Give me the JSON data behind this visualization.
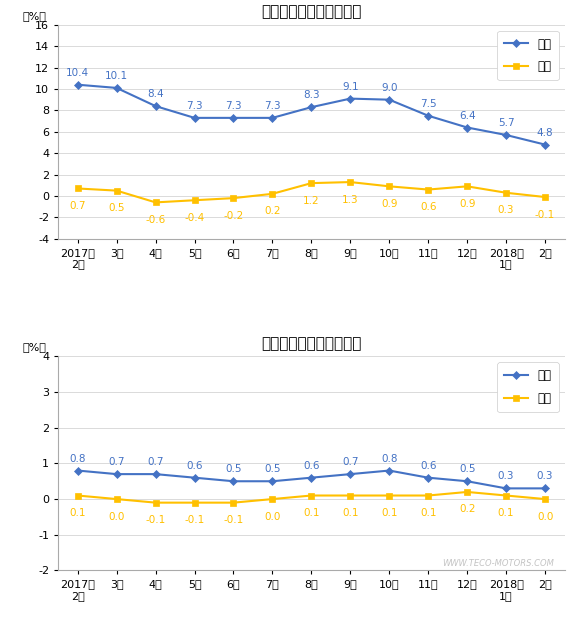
{
  "x_labels": [
    "2017年\n2月",
    "3月",
    "4月",
    "5月",
    "6月",
    "7月",
    "8月",
    "9月",
    "10月",
    "11月",
    "12月",
    "2018年\n1月",
    "2月"
  ],
  "chart1": {
    "title": "生产资料出厂价格涨跌幅",
    "tongbi": [
      10.4,
      10.1,
      8.4,
      7.3,
      7.3,
      7.3,
      8.3,
      9.1,
      9.0,
      7.5,
      6.4,
      5.7,
      4.8
    ],
    "huanbi": [
      0.7,
      0.5,
      -0.6,
      -0.4,
      -0.2,
      0.2,
      1.2,
      1.3,
      0.9,
      0.6,
      0.9,
      0.3,
      -0.1
    ],
    "ylim": [
      -4,
      16
    ],
    "yticks": [
      -4,
      -2,
      0,
      2,
      4,
      6,
      8,
      10,
      12,
      14,
      16
    ]
  },
  "chart2": {
    "title": "生活资料出厂价格涨跌幅",
    "tongbi": [
      0.8,
      0.7,
      0.7,
      0.6,
      0.5,
      0.5,
      0.6,
      0.7,
      0.8,
      0.6,
      0.5,
      0.3,
      0.3
    ],
    "huanbi": [
      0.1,
      0.0,
      -0.1,
      -0.1,
      -0.1,
      0.0,
      0.1,
      0.1,
      0.1,
      0.1,
      0.2,
      0.1,
      0.0
    ],
    "ylim": [
      -2,
      4
    ],
    "yticks": [
      -2,
      -1,
      0,
      1,
      2,
      3,
      4
    ]
  },
  "tongbi_color": "#4472C4",
  "huanbi_color": "#FFC000",
  "background_color": "#FFFFFF",
  "plot_bg_color": "#FFFFFF",
  "ylabel_text": "（%）",
  "legend_tongbi": "同比",
  "legend_huanbi": "环比",
  "watermark": "WWW.TECO-MOTORS.COM"
}
